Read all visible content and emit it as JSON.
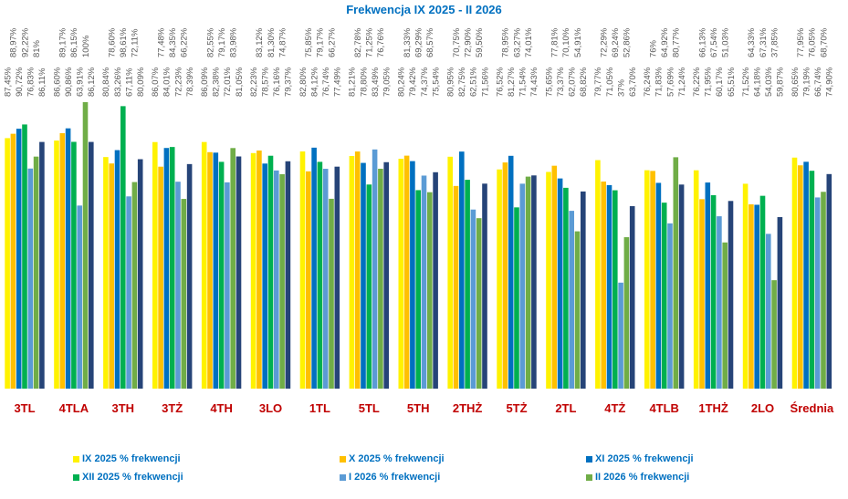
{
  "chart_data": {
    "type": "bar",
    "title": "Frekwencja IX 2025 - II 2026",
    "categories": [
      "3TL",
      "4TLA",
      "3TH",
      "3TŻ",
      "4TH",
      "3LO",
      "1TL",
      "5TL",
      "5TH",
      "2THŻ",
      "5TŻ",
      "2TL",
      "4TŻ",
      "4TLB",
      "1THŻ",
      "2LO",
      "Średnia"
    ],
    "ylim": [
      0,
      100
    ],
    "grid": false,
    "legend_position": "bottom",
    "value_format": "percent with comma decimal",
    "series": [
      {
        "name": "IX 2025 % frekwencji",
        "color": "#FFF200",
        "values": [
          87.45,
          86.6,
          80.84,
          86.07,
          86.09,
          82.23,
          82.8,
          81.21,
          80.24,
          80.95,
          76.52,
          75.65,
          79.77,
          76.24,
          76.22,
          71.52,
          80.65
        ]
      },
      {
        "name": "X 2025 % frekwencji",
        "color": "#FFC000",
        "values": [
          88.97,
          89.17,
          78.6,
          77.48,
          82.55,
          83.12,
          75.85,
          82.78,
          81.33,
          70.75,
          78.95,
          77.81,
          72.29,
          76.0,
          66.13,
          64.33,
          77.95
        ]
      },
      {
        "name": "XI 2025 % frekwencji",
        "color": "#0070C0",
        "values": [
          90.72,
          90.86,
          83.26,
          84.01,
          82.38,
          78.57,
          84.12,
          78.8,
          79.42,
          82.75,
          81.27,
          73.37,
          71.05,
          71.83,
          71.95,
          64.18,
          79.19
        ]
      },
      {
        "name": "XII 2025 % frekwencji",
        "color": "#00B050",
        "values": [
          92.22,
          86.15,
          98.61,
          84.35,
          79.17,
          81.3,
          79.17,
          71.25,
          69.29,
          72.9,
          63.27,
          70.1,
          69.24,
          64.92,
          67.54,
          67.31,
          76.05
        ]
      },
      {
        "name": "I 2026 % frekwencji",
        "color": "#5B9BD5",
        "values": [
          76.83,
          63.91,
          67.11,
          72.23,
          72.01,
          76.16,
          76.74,
          83.49,
          74.37,
          62.51,
          71.54,
          62.07,
          37,
          57.69,
          60.17,
          54.03,
          66.74
        ]
      },
      {
        "name": "II 2026 % frekwencji",
        "color": "#70AD47",
        "values": [
          81.0,
          100,
          72.11,
          66.22,
          83.98,
          74.87,
          66.27,
          76.76,
          68.57,
          59.5,
          74.01,
          54.91,
          52.86,
          80.77,
          51.03,
          37.85,
          68.7
        ]
      },
      {
        "color": "#264478",
        "values": [
          86.11,
          86.12,
          80.09,
          78.39,
          81.05,
          79.37,
          77.49,
          79.05,
          75.54,
          71.56,
          74.43,
          68.82,
          63.7,
          71.24,
          65.51,
          59.87,
          74.9
        ]
      }
    ]
  }
}
